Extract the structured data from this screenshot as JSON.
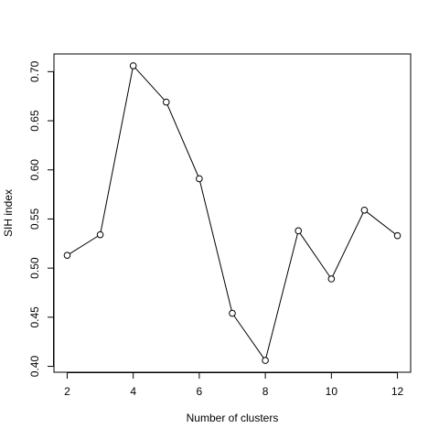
{
  "chart_data": {
    "type": "line",
    "title": "",
    "xlabel": "Number of clusters",
    "ylabel": "SIH index",
    "x": [
      2,
      3,
      4,
      5,
      6,
      7,
      8,
      9,
      10,
      11,
      12
    ],
    "series": [
      {
        "values": [
          0.513,
          0.534,
          0.706,
          0.669,
          0.591,
          0.454,
          0.406,
          0.538,
          0.489,
          0.559,
          0.533
        ]
      }
    ],
    "xlim": [
      1.6,
      12.4
    ],
    "ylim": [
      0.394,
      0.718
    ],
    "xticks": [
      2,
      4,
      6,
      8,
      10,
      12
    ],
    "xtick_labels": [
      "2",
      "4",
      "6",
      "8",
      "10",
      "12"
    ],
    "yticks": [
      0.4,
      0.45,
      0.5,
      0.55,
      0.6,
      0.65,
      0.7
    ],
    "ytick_labels": [
      "0.40",
      "0.45",
      "0.50",
      "0.55",
      "0.60",
      "0.65",
      "0.70"
    ],
    "markers": "open-circle",
    "grid": false,
    "legend": "none"
  }
}
